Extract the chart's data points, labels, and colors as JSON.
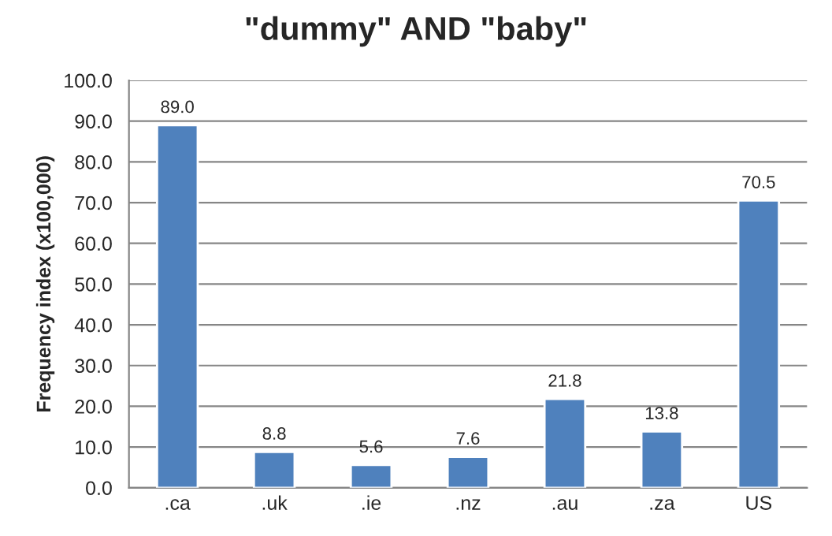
{
  "chart_data": {
    "type": "bar",
    "title": "\"dummy\" AND \"baby\"",
    "ylabel": "Frequency index (x100,000)",
    "categories": [
      ".ca",
      ".uk",
      ".ie",
      ".nz",
      ".au",
      ".za",
      "US"
    ],
    "values": [
      89.0,
      8.8,
      5.6,
      7.6,
      21.8,
      13.8,
      70.5
    ],
    "value_labels": [
      "89.0",
      "8.8",
      "5.6",
      "7.6",
      "21.8",
      "13.8",
      "70.5"
    ],
    "color": "#4f81bd",
    "ylim": [
      0,
      100
    ],
    "yticks": [
      {
        "value": 0,
        "label": "0.0"
      },
      {
        "value": 10,
        "label": "10.0"
      },
      {
        "value": 20,
        "label": "20.0"
      },
      {
        "value": 30,
        "label": "30.0"
      },
      {
        "value": 40,
        "label": "40.0"
      },
      {
        "value": 50,
        "label": "50.0"
      },
      {
        "value": 60,
        "label": "60.0"
      },
      {
        "value": 70,
        "label": "70.0"
      },
      {
        "value": 80,
        "label": "80.0"
      },
      {
        "value": 90,
        "label": "90.0"
      },
      {
        "value": 100,
        "label": "100.0"
      }
    ],
    "grid": "y",
    "legend": false
  }
}
